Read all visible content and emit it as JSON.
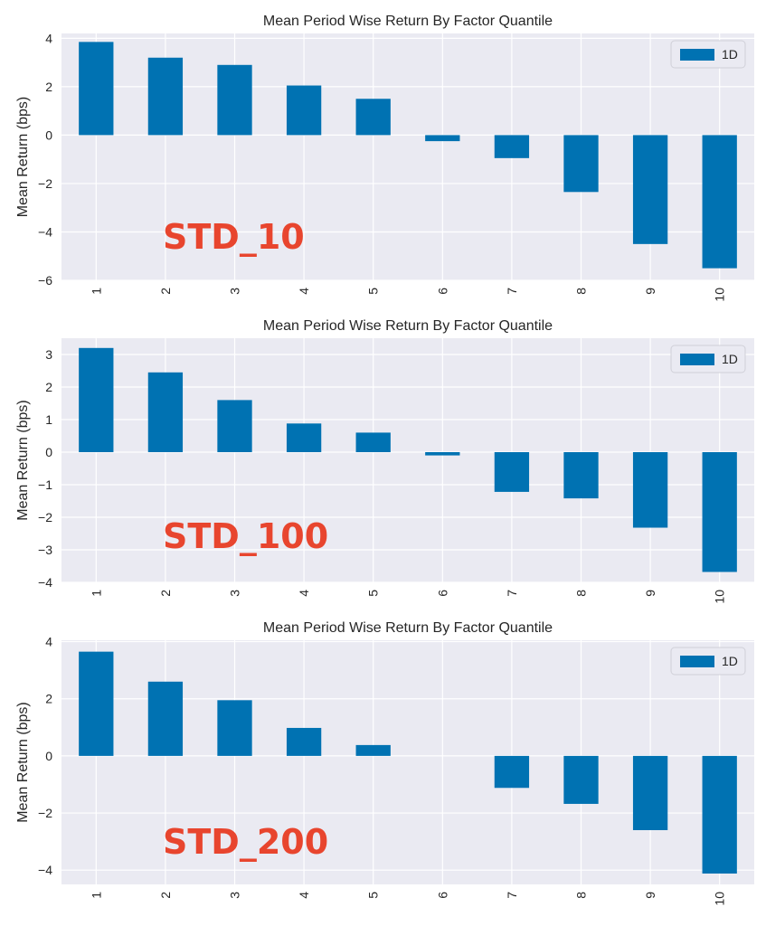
{
  "chart_data": [
    {
      "type": "bar",
      "title": "Mean Period Wise Return By Factor Quantile",
      "xlabel": "",
      "ylabel": "Mean Return (bps)",
      "categories": [
        "1",
        "2",
        "3",
        "4",
        "5",
        "6",
        "7",
        "8",
        "9",
        "10"
      ],
      "series": [
        {
          "name": "1D",
          "values": [
            3.85,
            3.2,
            2.9,
            2.05,
            1.5,
            -0.25,
            -0.95,
            -2.35,
            -4.5,
            -5.5
          ]
        }
      ],
      "yticks": [
        "4",
        "2",
        "0",
        "−2",
        "−4",
        "−6"
      ],
      "ytick_values": [
        4,
        2,
        0,
        -2,
        -4,
        -6
      ],
      "ylim": [
        -6,
        4.2
      ],
      "grid": true,
      "legend": "top-right",
      "annotation": "STD_10",
      "bar_color": "#0072b2",
      "background_color": "#eaeaf2"
    },
    {
      "type": "bar",
      "title": "Mean Period Wise Return By Factor Quantile",
      "xlabel": "",
      "ylabel": "Mean Return (bps)",
      "categories": [
        "1",
        "2",
        "3",
        "4",
        "5",
        "6",
        "7",
        "8",
        "9",
        "10"
      ],
      "series": [
        {
          "name": "1D",
          "values": [
            3.2,
            2.45,
            1.6,
            0.88,
            0.6,
            -0.1,
            -1.22,
            -1.42,
            -2.32,
            -3.68
          ]
        }
      ],
      "yticks": [
        "3",
        "2",
        "1",
        "0",
        "−1",
        "−2",
        "−3",
        "−4"
      ],
      "ytick_values": [
        3,
        2,
        1,
        0,
        -1,
        -2,
        -3,
        -4
      ],
      "ylim": [
        -4,
        3.5
      ],
      "grid": true,
      "legend": "top-right",
      "annotation": "STD_100",
      "bar_color": "#0072b2",
      "background_color": "#eaeaf2"
    },
    {
      "type": "bar",
      "title": "Mean Period Wise Return By Factor Quantile",
      "xlabel": "",
      "ylabel": "Mean Return (bps)",
      "categories": [
        "1",
        "2",
        "3",
        "4",
        "5",
        "6",
        "7",
        "8",
        "9",
        "10"
      ],
      "series": [
        {
          "name": "1D",
          "values": [
            3.65,
            2.6,
            1.95,
            0.98,
            0.38,
            0.0,
            -1.12,
            -1.68,
            -2.6,
            -4.12
          ]
        }
      ],
      "yticks": [
        "4",
        "2",
        "0",
        "−2",
        "−4"
      ],
      "ytick_values": [
        4,
        2,
        0,
        -2,
        -4
      ],
      "ylim": [
        -4.5,
        4.05
      ],
      "grid": true,
      "legend": "top-right",
      "annotation": "STD_200",
      "bar_color": "#0072b2",
      "background_color": "#eaeaf2"
    }
  ]
}
